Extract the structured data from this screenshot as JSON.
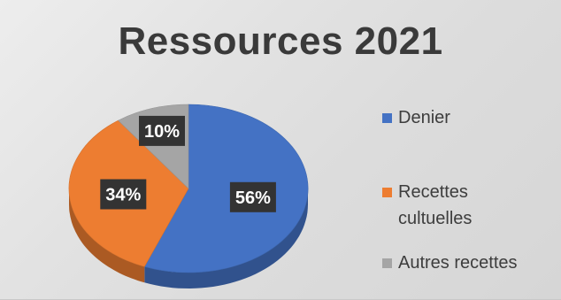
{
  "chart_data": {
    "type": "pie",
    "title": "Ressources 2021",
    "categories": [
      "Denier",
      "Recettes cultuelles",
      "Autres recettes"
    ],
    "values": [
      56,
      34,
      10
    ],
    "data_labels": [
      "56%",
      "34%",
      "10%"
    ],
    "colors": [
      "#4472c4",
      "#ed7d31",
      "#a5a5a5"
    ],
    "style": "3d-pie",
    "legend_position": "right"
  },
  "legend": {
    "items": [
      {
        "label": "Denier",
        "color": "#4472c4"
      },
      {
        "label": "Recettes\ncultuelles",
        "color": "#ed7d31"
      },
      {
        "label": "Autres recettes",
        "color": "#a5a5a5"
      }
    ]
  }
}
